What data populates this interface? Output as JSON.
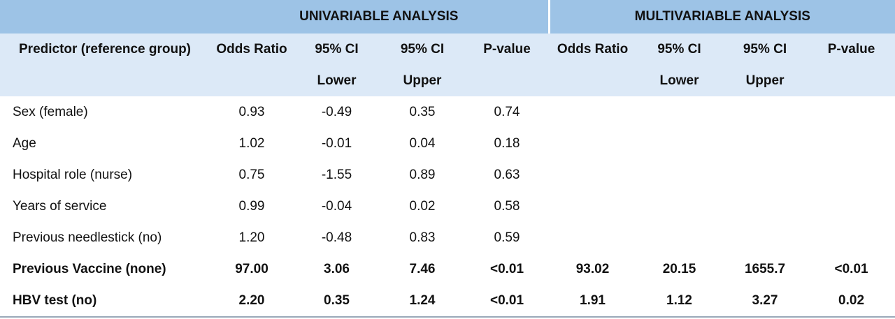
{
  "table": {
    "groups": [
      "UNIVARIABLE ANALYSIS",
      "MULTIVARIABLE ANALYSIS"
    ],
    "columns": [
      "Predictor (reference group)",
      "Odds Ratio",
      "95% CI Lower",
      "95% CI Upper",
      "P-value",
      "Odds Ratio",
      "95% CI Lower",
      "95% CI Upper",
      "P-value"
    ],
    "rows": [
      [
        "Sex (female)",
        "0.93",
        "-0.49",
        "0.35",
        "0.74",
        "",
        "",
        "",
        ""
      ],
      [
        "Age",
        "1.02",
        "-0.01",
        "0.04",
        "0.18",
        "",
        "",
        "",
        ""
      ],
      [
        "Hospital role (nurse)",
        "0.75",
        "-1.55",
        "0.89",
        "0.63",
        "",
        "",
        "",
        ""
      ],
      [
        "Years of service",
        "0.99",
        "-0.04",
        "0.02",
        "0.58",
        "",
        "",
        "",
        ""
      ],
      [
        "Previous needlestick (no)",
        "1.20",
        "-0.48",
        "0.83",
        "0.59",
        "",
        "",
        "",
        ""
      ],
      [
        "Previous Vaccine (none)",
        "97.00",
        "3.06",
        "7.46",
        "<0.01",
        "93.02",
        "20.15",
        "1655.7",
        "<0.01"
      ],
      [
        "HBV test (no)",
        "2.20",
        "0.35",
        "1.24",
        "<0.01",
        "1.91",
        "1.12",
        "3.27",
        "0.02"
      ]
    ]
  }
}
